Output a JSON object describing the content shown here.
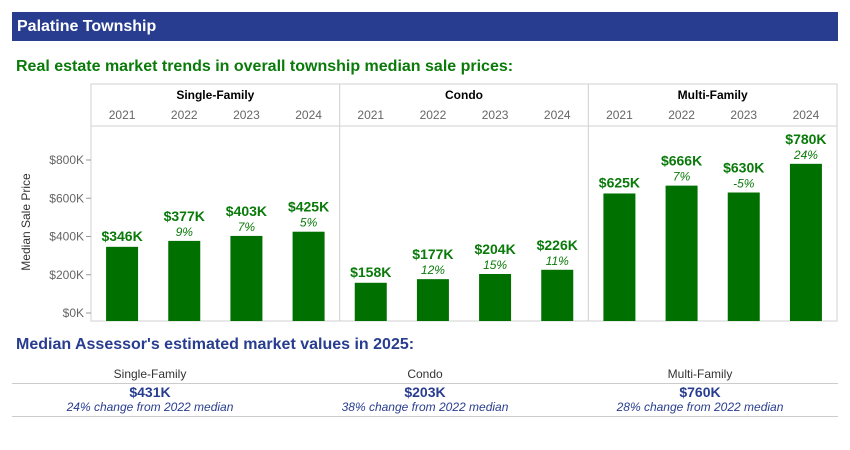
{
  "header": {
    "title": "Palatine Township"
  },
  "subtitle": "Real estate market trends in overall township median sale prices:",
  "colors": {
    "header_bg": "#283d8f",
    "bar": "#007000",
    "label_green": "#0a7a0a",
    "navy": "#283d8f"
  },
  "chart_data": {
    "type": "bar",
    "ylabel": "Median Sale Price",
    "ylim": [
      0,
      800000
    ],
    "yticks": [
      0,
      200000,
      400000,
      600000,
      800000
    ],
    "ytick_labels": [
      "$0K",
      "$200K",
      "$400K",
      "$600K",
      "$800K"
    ],
    "panels": [
      {
        "name": "Single-Family",
        "categories": [
          "2021",
          "2022",
          "2023",
          "2024"
        ],
        "values": [
          346000,
          377000,
          403000,
          425000
        ],
        "value_labels": [
          "$346K",
          "$377K",
          "$403K",
          "$425K"
        ],
        "change_labels": [
          "",
          "9%",
          "7%",
          "5%"
        ]
      },
      {
        "name": "Condo",
        "categories": [
          "2021",
          "2022",
          "2023",
          "2024"
        ],
        "values": [
          158000,
          177000,
          204000,
          226000
        ],
        "value_labels": [
          "$158K",
          "$177K",
          "$204K",
          "$226K"
        ],
        "change_labels": [
          "",
          "12%",
          "15%",
          "11%"
        ]
      },
      {
        "name": "Multi-Family",
        "categories": [
          "2021",
          "2022",
          "2023",
          "2024"
        ],
        "values": [
          625000,
          666000,
          630000,
          780000
        ],
        "value_labels": [
          "$625K",
          "$666K",
          "$630K",
          "$780K"
        ],
        "change_labels": [
          "",
          "7%",
          "-5%",
          "24%"
        ]
      }
    ]
  },
  "assessor": {
    "title": "Median Assessor's estimated market values in 2025:",
    "items": [
      {
        "label": "Single-Family",
        "value": "$431K",
        "change": "24% change from 2022 median"
      },
      {
        "label": "Condo",
        "value": "$203K",
        "change": "38% change from 2022 median"
      },
      {
        "label": "Multi-Family",
        "value": "$760K",
        "change": "28% change from 2022 median"
      }
    ]
  }
}
